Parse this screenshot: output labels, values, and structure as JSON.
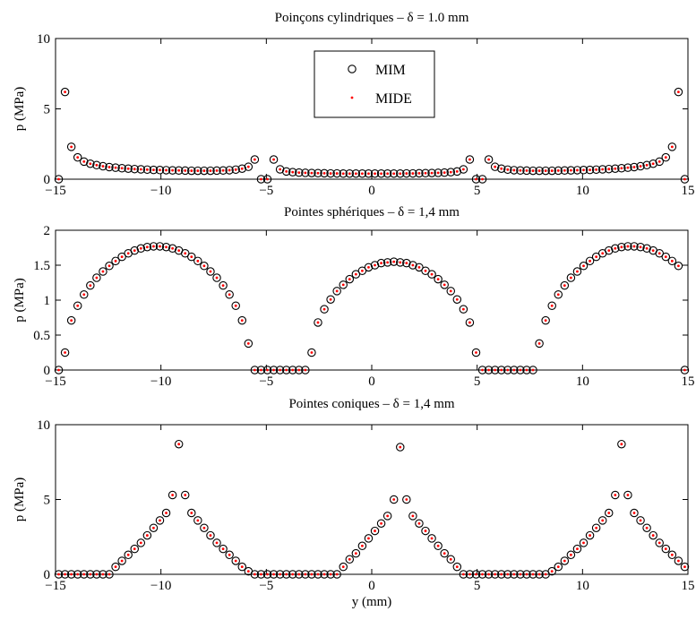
{
  "colors": {
    "mim": "#000000",
    "mide": "#ff0000",
    "axes": "#000000",
    "background": "#ffffff"
  },
  "chart_data": [
    {
      "type": "scatter",
      "title": "Poinçons cylindriques – δ = 1.0 mm",
      "xlabel": "",
      "ylabel": "p (MPa)",
      "xlim": [
        -15,
        15
      ],
      "ylim": [
        0,
        10
      ],
      "xticks": [
        -15,
        -10,
        -5,
        0,
        5,
        10,
        15
      ],
      "xtick_labels": [
        "−15",
        "−10",
        "−5",
        "0",
        "5",
        "10",
        "15"
      ],
      "yticks": [
        0,
        5,
        10
      ],
      "ytick_labels": [
        "0",
        "5",
        "10"
      ],
      "legend": {
        "position": "top-center",
        "entries": [
          "MIM",
          "MIDE"
        ]
      },
      "x": [
        -14.85,
        -14.55,
        -14.25,
        -13.95,
        -13.65,
        -13.35,
        -13.05,
        -12.75,
        -12.45,
        -12.15,
        -11.85,
        -11.55,
        -11.25,
        -10.95,
        -10.65,
        -10.35,
        -10.05,
        -9.75,
        -9.45,
        -9.15,
        -8.85,
        -8.55,
        -8.25,
        -7.95,
        -7.65,
        -7.35,
        -7.05,
        -6.75,
        -6.45,
        -6.15,
        -5.85,
        -5.55,
        -5.25,
        -4.95,
        -4.65,
        -4.35,
        -4.05,
        -3.75,
        -3.45,
        -3.15,
        -2.85,
        -2.55,
        -2.25,
        -1.95,
        -1.65,
        -1.35,
        -1.05,
        -0.75,
        -0.45,
        -0.15,
        0.15,
        0.45,
        0.75,
        1.05,
        1.35,
        1.65,
        1.95,
        2.25,
        2.55,
        2.85,
        3.15,
        3.45,
        3.75,
        4.05,
        4.35,
        4.65,
        4.95,
        5.25,
        5.55,
        5.85,
        6.15,
        6.45,
        6.75,
        7.05,
        7.35,
        7.65,
        7.95,
        8.25,
        8.55,
        8.85,
        9.15,
        9.45,
        9.75,
        10.05,
        10.35,
        10.65,
        10.95,
        11.25,
        11.55,
        11.85,
        12.15,
        12.45,
        12.75,
        13.05,
        13.35,
        13.65,
        13.95,
        14.25,
        14.55,
        14.85
      ],
      "series": [
        {
          "name": "MIM",
          "marker": "circle",
          "y": [
            0,
            6.2,
            2.3,
            1.55,
            1.25,
            1.1,
            1.0,
            0.92,
            0.86,
            0.82,
            0.78,
            0.75,
            0.72,
            0.7,
            0.68,
            0.66,
            0.65,
            0.64,
            0.63,
            0.62,
            0.61,
            0.6,
            0.6,
            0.6,
            0.6,
            0.61,
            0.62,
            0.64,
            0.68,
            0.75,
            0.88,
            1.4,
            0,
            0,
            1.4,
            0.7,
            0.55,
            0.5,
            0.47,
            0.45,
            0.44,
            0.43,
            0.42,
            0.41,
            0.41,
            0.4,
            0.4,
            0.4,
            0.4,
            0.4,
            0.4,
            0.4,
            0.4,
            0.4,
            0.4,
            0.41,
            0.41,
            0.42,
            0.43,
            0.44,
            0.45,
            0.47,
            0.5,
            0.55,
            0.7,
            1.4,
            0,
            0,
            1.4,
            0.88,
            0.75,
            0.68,
            0.64,
            0.62,
            0.61,
            0.6,
            0.6,
            0.6,
            0.6,
            0.61,
            0.62,
            0.63,
            0.64,
            0.65,
            0.66,
            0.68,
            0.7,
            0.72,
            0.75,
            0.78,
            0.82,
            0.86,
            0.92,
            1.0,
            1.1,
            1.25,
            1.55,
            2.3,
            6.2,
            0
          ]
        },
        {
          "name": "MIDE",
          "marker": "dot",
          "y": [
            0,
            6.2,
            2.3,
            1.55,
            1.25,
            1.1,
            1.0,
            0.92,
            0.86,
            0.82,
            0.78,
            0.75,
            0.72,
            0.7,
            0.68,
            0.66,
            0.65,
            0.64,
            0.63,
            0.62,
            0.61,
            0.6,
            0.6,
            0.6,
            0.6,
            0.61,
            0.62,
            0.64,
            0.68,
            0.75,
            0.88,
            1.4,
            0,
            0,
            1.4,
            0.7,
            0.55,
            0.5,
            0.47,
            0.45,
            0.44,
            0.43,
            0.42,
            0.41,
            0.41,
            0.4,
            0.4,
            0.4,
            0.4,
            0.4,
            0.4,
            0.4,
            0.4,
            0.4,
            0.4,
            0.41,
            0.41,
            0.42,
            0.43,
            0.44,
            0.45,
            0.47,
            0.5,
            0.55,
            0.7,
            1.4,
            0,
            0,
            1.4,
            0.88,
            0.75,
            0.68,
            0.64,
            0.62,
            0.61,
            0.6,
            0.6,
            0.6,
            0.6,
            0.61,
            0.62,
            0.63,
            0.64,
            0.65,
            0.66,
            0.68,
            0.7,
            0.72,
            0.75,
            0.78,
            0.82,
            0.86,
            0.92,
            1.0,
            1.1,
            1.25,
            1.55,
            2.3,
            6.2,
            0
          ]
        }
      ]
    },
    {
      "type": "scatter",
      "title": "Pointes sphériques – δ = 1,4 mm",
      "xlabel": "",
      "ylabel": "p (MPa)",
      "xlim": [
        -15,
        15
      ],
      "ylim": [
        0,
        2
      ],
      "xticks": [
        -15,
        -10,
        -5,
        0,
        5,
        10,
        15
      ],
      "xtick_labels": [
        "−15",
        "−10",
        "−5",
        "0",
        "5",
        "10",
        "15"
      ],
      "yticks": [
        0,
        0.5,
        1,
        1.5,
        2
      ],
      "ytick_labels": [
        "0",
        "0.5",
        "1",
        "1.5",
        "2"
      ],
      "x": [
        -14.85,
        -14.55,
        -14.25,
        -13.95,
        -13.65,
        -13.35,
        -13.05,
        -12.75,
        -12.45,
        -12.15,
        -11.85,
        -11.55,
        -11.25,
        -10.95,
        -10.65,
        -10.35,
        -10.05,
        -9.75,
        -9.45,
        -9.15,
        -8.85,
        -8.55,
        -8.25,
        -7.95,
        -7.65,
        -7.35,
        -7.05,
        -6.75,
        -6.45,
        -6.15,
        -5.85,
        -5.55,
        -5.25,
        -4.95,
        -4.65,
        -4.35,
        -4.05,
        -3.75,
        -3.45,
        -3.15,
        -2.85,
        -2.55,
        -2.25,
        -1.95,
        -1.65,
        -1.35,
        -1.05,
        -0.75,
        -0.45,
        -0.15,
        0.15,
        0.45,
        0.75,
        1.05,
        1.35,
        1.65,
        1.95,
        2.25,
        2.55,
        2.85,
        3.15,
        3.45,
        3.75,
        4.05,
        4.35,
        4.65,
        4.95,
        5.25,
        5.55,
        5.85,
        6.15,
        6.45,
        6.75,
        7.05,
        7.35,
        7.65,
        7.95,
        8.25,
        8.55,
        8.85,
        9.15,
        9.45,
        9.75,
        10.05,
        10.35,
        10.65,
        10.95,
        11.25,
        11.55,
        11.85,
        12.15,
        12.45,
        12.75,
        13.05,
        13.35,
        13.65,
        13.95,
        14.25,
        14.55,
        14.85
      ],
      "series": [
        {
          "name": "MIM",
          "marker": "circle",
          "y": [
            0,
            0.25,
            0.71,
            0.92,
            1.08,
            1.21,
            1.32,
            1.41,
            1.49,
            1.56,
            1.62,
            1.67,
            1.71,
            1.74,
            1.76,
            1.77,
            1.77,
            1.76,
            1.74,
            1.71,
            1.67,
            1.62,
            1.56,
            1.49,
            1.41,
            1.32,
            1.21,
            1.08,
            0.92,
            0.71,
            0.38,
            0,
            0,
            0,
            0,
            0,
            0,
            0,
            0,
            0,
            0.25,
            0.68,
            0.87,
            1.01,
            1.13,
            1.22,
            1.3,
            1.37,
            1.42,
            1.47,
            1.5,
            1.53,
            1.54,
            1.55,
            1.54,
            1.53,
            1.5,
            1.47,
            1.42,
            1.37,
            1.3,
            1.22,
            1.13,
            1.01,
            0.87,
            0.68,
            0.25,
            0,
            0,
            0,
            0,
            0,
            0,
            0,
            0,
            0,
            0.38,
            0.71,
            0.92,
            1.08,
            1.21,
            1.32,
            1.41,
            1.49,
            1.56,
            1.62,
            1.67,
            1.71,
            1.74,
            1.76,
            1.77,
            1.77,
            1.76,
            1.74,
            1.71,
            1.67,
            1.62,
            1.56,
            1.49,
            0
          ]
        },
        {
          "name": "MIDE",
          "marker": "dot",
          "y": [
            0,
            0.25,
            0.71,
            0.92,
            1.08,
            1.21,
            1.32,
            1.41,
            1.49,
            1.56,
            1.62,
            1.67,
            1.71,
            1.74,
            1.76,
            1.77,
            1.77,
            1.76,
            1.74,
            1.71,
            1.67,
            1.62,
            1.56,
            1.49,
            1.41,
            1.32,
            1.21,
            1.08,
            0.92,
            0.71,
            0.38,
            0,
            0,
            0,
            0,
            0,
            0,
            0,
            0,
            0,
            0.25,
            0.68,
            0.87,
            1.01,
            1.13,
            1.22,
            1.3,
            1.37,
            1.42,
            1.47,
            1.5,
            1.53,
            1.54,
            1.55,
            1.54,
            1.53,
            1.5,
            1.47,
            1.42,
            1.37,
            1.3,
            1.22,
            1.13,
            1.01,
            0.87,
            0.68,
            0.25,
            0,
            0,
            0,
            0,
            0,
            0,
            0,
            0,
            0,
            0.38,
            0.71,
            0.92,
            1.08,
            1.21,
            1.32,
            1.41,
            1.49,
            1.56,
            1.62,
            1.67,
            1.71,
            1.74,
            1.76,
            1.77,
            1.77,
            1.76,
            1.74,
            1.71,
            1.67,
            1.62,
            1.56,
            1.49,
            0
          ]
        }
      ]
    },
    {
      "type": "scatter",
      "title": "Pointes coniques – δ = 1,4 mm",
      "xlabel": "y (mm)",
      "ylabel": "p (MPa)",
      "xlim": [
        -15,
        15
      ],
      "ylim": [
        0,
        10
      ],
      "xticks": [
        -15,
        -10,
        -5,
        0,
        5,
        10,
        15
      ],
      "xtick_labels": [
        "−15",
        "−10",
        "−5",
        "0",
        "5",
        "10",
        "15"
      ],
      "yticks": [
        0,
        5,
        10
      ],
      "ytick_labels": [
        "0",
        "5",
        "10"
      ],
      "x": [
        -14.85,
        -14.55,
        -14.25,
        -13.95,
        -13.65,
        -13.35,
        -13.05,
        -12.75,
        -12.45,
        -12.15,
        -11.85,
        -11.55,
        -11.25,
        -10.95,
        -10.65,
        -10.35,
        -10.05,
        -9.75,
        -9.45,
        -9.15,
        -8.85,
        -8.55,
        -8.25,
        -7.95,
        -7.65,
        -7.35,
        -7.05,
        -6.75,
        -6.45,
        -6.15,
        -5.85,
        -5.55,
        -5.25,
        -4.95,
        -4.65,
        -4.35,
        -4.05,
        -3.75,
        -3.45,
        -3.15,
        -2.85,
        -2.55,
        -2.25,
        -1.95,
        -1.65,
        -1.35,
        -1.05,
        -0.75,
        -0.45,
        -0.15,
        0.15,
        0.45,
        0.75,
        1.05,
        1.35,
        1.65,
        1.95,
        2.25,
        2.55,
        2.85,
        3.15,
        3.45,
        3.75,
        4.05,
        4.35,
        4.65,
        4.95,
        5.25,
        5.55,
        5.85,
        6.15,
        6.45,
        6.75,
        7.05,
        7.35,
        7.65,
        7.95,
        8.25,
        8.55,
        8.85,
        9.15,
        9.45,
        9.75,
        10.05,
        10.35,
        10.65,
        10.95,
        11.25,
        11.55,
        11.85,
        12.15,
        12.45,
        12.75,
        13.05,
        13.35,
        13.65,
        13.95,
        14.25,
        14.55,
        14.85
      ],
      "series": [
        {
          "name": "MIM",
          "marker": "circle",
          "y": [
            0,
            0,
            0,
            0,
            0,
            0,
            0,
            0,
            0,
            0.5,
            0.9,
            1.3,
            1.7,
            2.1,
            2.6,
            3.1,
            3.6,
            4.1,
            5.3,
            8.7,
            5.3,
            4.1,
            3.6,
            3.1,
            2.6,
            2.1,
            1.7,
            1.3,
            0.9,
            0.5,
            0.2,
            0,
            0,
            0,
            0,
            0,
            0,
            0,
            0,
            0,
            0,
            0,
            0,
            0,
            0,
            0.5,
            1.0,
            1.4,
            1.9,
            2.4,
            2.9,
            3.4,
            3.9,
            5.0,
            8.5,
            5.0,
            3.9,
            3.4,
            2.9,
            2.4,
            1.9,
            1.4,
            1.0,
            0.5,
            0,
            0,
            0,
            0,
            0,
            0,
            0,
            0,
            0,
            0,
            0,
            0,
            0,
            0,
            0.2,
            0.5,
            0.9,
            1.3,
            1.7,
            2.1,
            2.6,
            3.1,
            3.6,
            4.1,
            5.3,
            8.7,
            5.3,
            4.1,
            3.6,
            3.1,
            2.6,
            2.1,
            1.7,
            1.3,
            0.9,
            0.5
          ]
        },
        {
          "name": "MIDE",
          "marker": "dot",
          "y": [
            0,
            0,
            0,
            0,
            0,
            0,
            0,
            0,
            0,
            0.5,
            0.9,
            1.3,
            1.7,
            2.1,
            2.6,
            3.1,
            3.6,
            4.1,
            5.3,
            8.7,
            5.3,
            4.1,
            3.6,
            3.1,
            2.6,
            2.1,
            1.7,
            1.3,
            0.9,
            0.5,
            0.2,
            0,
            0,
            0,
            0,
            0,
            0,
            0,
            0,
            0,
            0,
            0,
            0,
            0,
            0,
            0.5,
            1.0,
            1.4,
            1.9,
            2.4,
            2.9,
            3.4,
            3.9,
            5.0,
            8.5,
            5.0,
            3.9,
            3.4,
            2.9,
            2.4,
            1.9,
            1.4,
            1.0,
            0.5,
            0,
            0,
            0,
            0,
            0,
            0,
            0,
            0,
            0,
            0,
            0,
            0,
            0,
            0,
            0.2,
            0.5,
            0.9,
            1.3,
            1.7,
            2.1,
            2.6,
            3.1,
            3.6,
            4.1,
            5.3,
            8.7,
            5.3,
            4.1,
            3.6,
            3.1,
            2.6,
            2.1,
            1.7,
            1.3,
            0.9,
            0.5
          ]
        }
      ]
    }
  ]
}
